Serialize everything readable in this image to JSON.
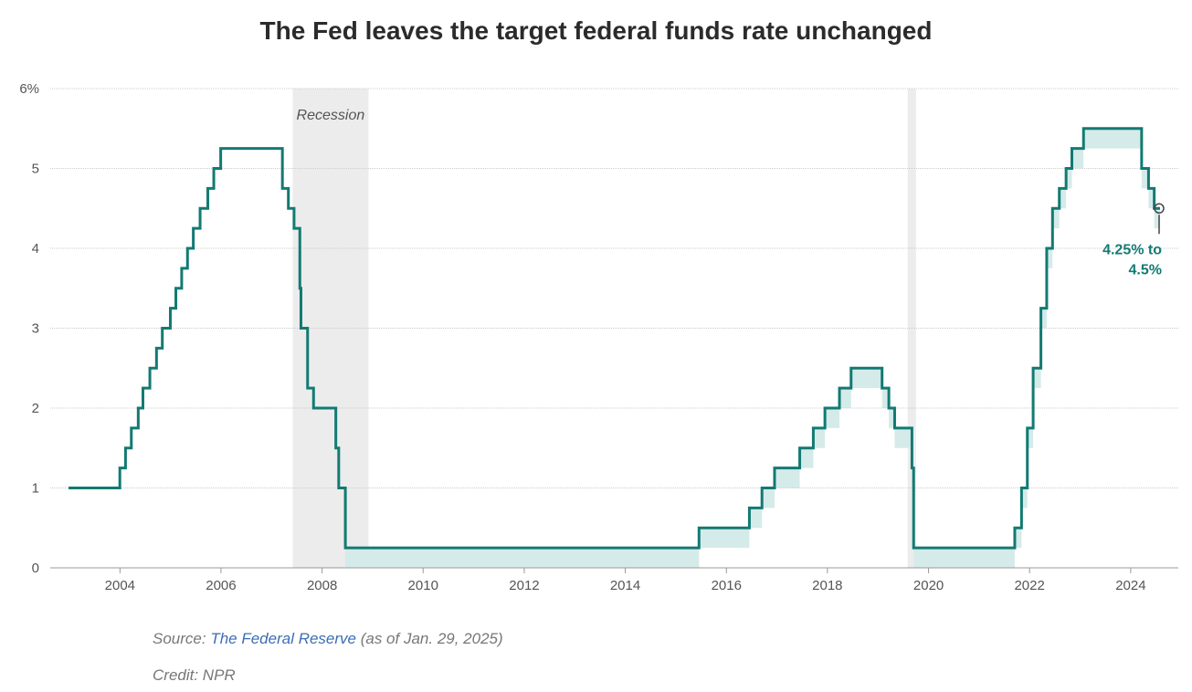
{
  "chart_data": {
    "type": "line",
    "line_shape": "step",
    "title": "The Fed leaves the target federal funds rate unchanged",
    "xlabel": "",
    "ylabel": "",
    "xlim": [
      "2003-06-01",
      "2025-04-01"
    ],
    "ylim": [
      0,
      6
    ],
    "y_ticks": [
      {
        "value": 0,
        "label": "0"
      },
      {
        "value": 1,
        "label": "1"
      },
      {
        "value": 2,
        "label": "2"
      },
      {
        "value": 3,
        "label": "3"
      },
      {
        "value": 4,
        "label": "4"
      },
      {
        "value": 5,
        "label": "5"
      },
      {
        "value": 6,
        "label": "6%"
      }
    ],
    "x_ticks": [
      "2004",
      "2006",
      "2008",
      "2010",
      "2012",
      "2014",
      "2016",
      "2018",
      "2020",
      "2022",
      "2024"
    ],
    "grid": "horizontal",
    "colors": {
      "line": "#127a73",
      "band": "#d4ebe9",
      "recession": "#ececec",
      "grid": "#cccccc"
    },
    "recessions": [
      {
        "label": "Recession",
        "start": "2007-12-01",
        "end": "2009-06-01"
      },
      {
        "label": "",
        "start": "2020-02-01",
        "end": "2020-04-01"
      }
    ],
    "series": [
      {
        "name": "",
        "kind": "upper-bound-step",
        "points": [
          [
            "2003-06-25",
            1.0
          ],
          [
            "2004-06-30",
            1.25
          ],
          [
            "2004-08-10",
            1.5
          ],
          [
            "2004-09-21",
            1.75
          ],
          [
            "2004-11-10",
            2.0
          ],
          [
            "2004-12-14",
            2.25
          ],
          [
            "2005-02-02",
            2.5
          ],
          [
            "2005-03-22",
            2.75
          ],
          [
            "2005-05-03",
            3.0
          ],
          [
            "2005-06-30",
            3.25
          ],
          [
            "2005-08-09",
            3.5
          ],
          [
            "2005-09-20",
            3.75
          ],
          [
            "2005-11-01",
            4.0
          ],
          [
            "2005-12-13",
            4.25
          ],
          [
            "2006-01-31",
            4.5
          ],
          [
            "2006-03-28",
            4.75
          ],
          [
            "2006-05-10",
            5.0
          ],
          [
            "2006-06-29",
            5.25
          ],
          [
            "2007-09-18",
            4.75
          ],
          [
            "2007-10-31",
            4.5
          ],
          [
            "2007-12-11",
            4.25
          ],
          [
            "2008-01-22",
            3.5
          ],
          [
            "2008-01-30",
            3.0
          ],
          [
            "2008-03-18",
            2.25
          ],
          [
            "2008-04-30",
            2.0
          ],
          [
            "2008-10-08",
            1.5
          ],
          [
            "2008-10-29",
            1.0
          ],
          [
            "2008-12-16",
            0.25
          ],
          [
            "2015-12-16",
            0.5
          ],
          [
            "2016-12-14",
            0.75
          ],
          [
            "2017-03-15",
            1.0
          ],
          [
            "2017-06-14",
            1.25
          ],
          [
            "2017-12-13",
            1.5
          ],
          [
            "2018-03-21",
            1.75
          ],
          [
            "2018-06-13",
            2.0
          ],
          [
            "2018-09-26",
            2.25
          ],
          [
            "2018-12-19",
            2.5
          ],
          [
            "2019-07-31",
            2.25
          ],
          [
            "2019-09-18",
            2.0
          ],
          [
            "2019-10-30",
            1.75
          ],
          [
            "2020-03-03",
            1.25
          ],
          [
            "2020-03-15",
            0.25
          ],
          [
            "2022-03-16",
            0.5
          ],
          [
            "2022-05-04",
            1.0
          ],
          [
            "2022-06-15",
            1.75
          ],
          [
            "2022-07-27",
            2.5
          ],
          [
            "2022-09-21",
            3.25
          ],
          [
            "2022-11-02",
            4.0
          ],
          [
            "2022-12-14",
            4.5
          ],
          [
            "2023-02-01",
            4.75
          ],
          [
            "2023-03-22",
            5.0
          ],
          [
            "2023-05-03",
            5.25
          ],
          [
            "2023-07-26",
            5.5
          ],
          [
            "2024-09-18",
            5.0
          ],
          [
            "2024-11-07",
            4.75
          ],
          [
            "2024-12-18",
            4.5
          ],
          [
            "2025-01-29",
            4.5
          ]
        ],
        "band_width": 0.25,
        "band_start": "2008-12-16"
      }
    ],
    "annotations": [
      {
        "text_lines": [
          "4.25% to",
          "4.5%"
        ],
        "at": [
          "2025-01-29",
          4.5
        ]
      }
    ]
  },
  "footer": {
    "source_prefix": "Source: ",
    "source_link": "The Federal Reserve",
    "source_suffix": " (as of Jan. 29, 2025)",
    "credit": "Credit: NPR"
  }
}
